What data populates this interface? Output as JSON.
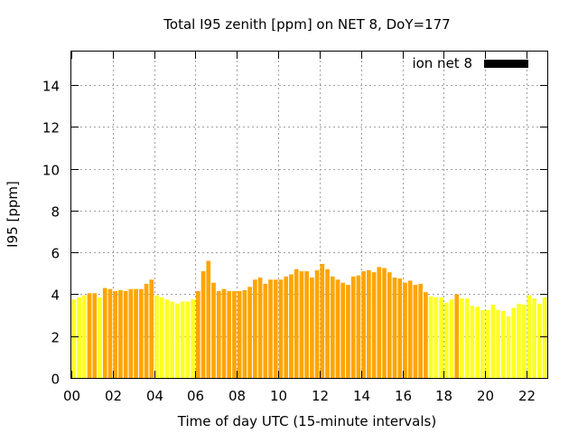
{
  "chart_data": {
    "type": "bar",
    "title": "Total I95 zenith [ppm] on NET 8, DoY=177",
    "xlabel": "Time of day UTC (15-minute intervals)",
    "ylabel": "I95 [ppm]",
    "xlim": [
      0,
      23
    ],
    "ylim": [
      0,
      15.6
    ],
    "xticks": [
      "00",
      "02",
      "04",
      "06",
      "08",
      "10",
      "12",
      "14",
      "16",
      "18",
      "20",
      "22"
    ],
    "xtick_values": [
      0,
      2,
      4,
      6,
      8,
      10,
      12,
      14,
      16,
      18,
      20,
      22
    ],
    "yticks": [
      "0",
      "2",
      "4",
      "6",
      "8",
      "10",
      "12",
      "14"
    ],
    "ytick_values": [
      0,
      2,
      4,
      6,
      8,
      10,
      12,
      14
    ],
    "grid": true,
    "legend": {
      "label": "ion net 8",
      "position": "top-right",
      "color": "#000000"
    },
    "colors": {
      "low": "#ffff22",
      "high": "#ffa500"
    },
    "series": [
      {
        "name": "ion net 8",
        "x": [
          0.0,
          0.25,
          0.5,
          0.75,
          1.0,
          1.25,
          1.5,
          1.75,
          2.0,
          2.25,
          2.5,
          2.75,
          3.0,
          3.25,
          3.5,
          3.75,
          4.0,
          4.25,
          4.5,
          4.75,
          5.0,
          5.25,
          5.5,
          5.75,
          6.0,
          6.25,
          6.5,
          6.75,
          7.0,
          7.25,
          7.5,
          7.75,
          8.0,
          8.25,
          8.5,
          8.75,
          9.0,
          9.25,
          9.5,
          9.75,
          10.0,
          10.25,
          10.5,
          10.75,
          11.0,
          11.25,
          11.5,
          11.75,
          12.0,
          12.25,
          12.5,
          12.75,
          13.0,
          13.25,
          13.5,
          13.75,
          14.0,
          14.25,
          14.5,
          14.75,
          15.0,
          15.25,
          15.5,
          15.75,
          16.0,
          16.25,
          16.5,
          16.75,
          17.0,
          17.25,
          17.5,
          17.75,
          18.0,
          18.25,
          18.5,
          18.75,
          19.0,
          19.25,
          19.5,
          19.75,
          20.0,
          20.25,
          20.5,
          20.75,
          21.0,
          21.25,
          21.5,
          21.75,
          22.0,
          22.25,
          22.5,
          22.75
        ],
        "values": [
          3.75,
          3.85,
          3.95,
          4.05,
          4.05,
          3.85,
          4.3,
          4.25,
          4.15,
          4.2,
          4.15,
          4.25,
          4.25,
          4.25,
          4.5,
          4.7,
          3.95,
          3.85,
          3.75,
          3.65,
          3.55,
          3.65,
          3.65,
          3.75,
          4.15,
          5.1,
          5.6,
          4.55,
          4.15,
          4.25,
          4.15,
          4.15,
          4.15,
          4.2,
          4.35,
          4.7,
          4.8,
          4.5,
          4.7,
          4.7,
          4.7,
          4.85,
          4.95,
          5.2,
          5.1,
          5.1,
          4.8,
          5.15,
          5.45,
          5.2,
          4.85,
          4.7,
          4.55,
          4.45,
          4.85,
          4.9,
          5.1,
          5.15,
          5.05,
          5.3,
          5.25,
          5.05,
          4.8,
          4.75,
          4.55,
          4.65,
          4.45,
          4.5,
          4.1,
          3.9,
          3.85,
          3.85,
          3.6,
          3.75,
          4.0,
          3.8,
          3.8,
          3.45,
          3.4,
          3.25,
          3.25,
          3.5,
          3.25,
          3.2,
          2.95,
          3.35,
          3.55,
          3.5,
          3.95,
          3.8,
          3.55,
          3.85
        ],
        "level": [
          "low",
          "low",
          "low",
          "high",
          "high",
          "low",
          "high",
          "high",
          "high",
          "high",
          "high",
          "high",
          "high",
          "high",
          "high",
          "high",
          "low",
          "low",
          "low",
          "low",
          "low",
          "low",
          "low",
          "low",
          "high",
          "high",
          "high",
          "high",
          "high",
          "high",
          "high",
          "high",
          "high",
          "high",
          "high",
          "high",
          "high",
          "high",
          "high",
          "high",
          "high",
          "high",
          "high",
          "high",
          "high",
          "high",
          "high",
          "high",
          "high",
          "high",
          "high",
          "high",
          "high",
          "high",
          "high",
          "high",
          "high",
          "high",
          "high",
          "high",
          "high",
          "high",
          "high",
          "high",
          "high",
          "high",
          "high",
          "high",
          "high",
          "low",
          "low",
          "low",
          "low",
          "low",
          "high",
          "low",
          "low",
          "low",
          "low",
          "low",
          "low",
          "low",
          "low",
          "low",
          "low",
          "low",
          "low",
          "low",
          "low",
          "low",
          "low",
          "low"
        ]
      }
    ]
  }
}
